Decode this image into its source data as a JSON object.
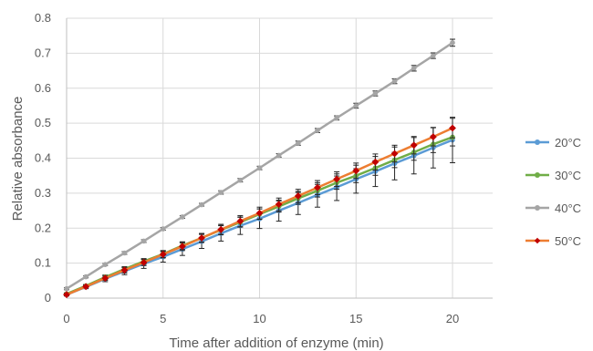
{
  "chart_data": {
    "type": "line",
    "xlabel": "Time after addition of enzyme (min)",
    "ylabel": "Relative absorbance",
    "xlim": [
      0,
      20
    ],
    "ylim": [
      0,
      0.8
    ],
    "x_ticks": [
      "0",
      "5",
      "10",
      "15",
      "20"
    ],
    "y_ticks": [
      "0",
      "0.1",
      "0.2",
      "0.3",
      "0.4",
      "0.5",
      "0.6",
      "0.7",
      "0.8"
    ],
    "grid": "vertical and horizontal",
    "legend_position": "right",
    "x": [
      0,
      1,
      2,
      3,
      4,
      5,
      6,
      7,
      8,
      9,
      10,
      11,
      12,
      13,
      14,
      15,
      16,
      17,
      18,
      19,
      20
    ],
    "series": [
      {
        "name": "20°C",
        "color": "#5b9bd5",
        "marker": "circle",
        "values": [
          0.01,
          0.032,
          0.055,
          0.077,
          0.098,
          0.118,
          0.14,
          0.162,
          0.185,
          0.207,
          0.227,
          0.25,
          0.272,
          0.295,
          0.317,
          0.34,
          0.362,
          0.385,
          0.407,
          0.43,
          0.452
        ],
        "errors": [
          0.004,
          0.005,
          0.008,
          0.01,
          0.013,
          0.015,
          0.018,
          0.02,
          0.022,
          0.025,
          0.028,
          0.03,
          0.033,
          0.035,
          0.038,
          0.04,
          0.043,
          0.047,
          0.052,
          0.058,
          0.065
        ]
      },
      {
        "name": "30°C",
        "color": "#70ad47",
        "marker": "circle",
        "values": [
          0.012,
          0.035,
          0.06,
          0.083,
          0.105,
          0.126,
          0.15,
          0.172,
          0.195,
          0.217,
          0.24,
          0.262,
          0.285,
          0.307,
          0.33,
          0.35,
          0.372,
          0.395,
          0.417,
          0.44,
          0.46
        ],
        "errors": [
          0.003,
          0.004,
          0.006,
          0.007,
          0.008,
          0.01,
          0.011,
          0.012,
          0.013,
          0.014,
          0.015,
          0.016,
          0.017,
          0.018,
          0.019,
          0.02,
          0.021,
          0.022,
          0.023,
          0.024,
          0.025
        ]
      },
      {
        "name": "40°C",
        "color": "#a5a5a5",
        "marker": "circle",
        "values": [
          0.027,
          0.061,
          0.096,
          0.129,
          0.163,
          0.198,
          0.232,
          0.267,
          0.302,
          0.337,
          0.372,
          0.408,
          0.443,
          0.479,
          0.515,
          0.55,
          0.585,
          0.62,
          0.657,
          0.693,
          0.73
        ],
        "errors": [
          0.003,
          0.003,
          0.003,
          0.004,
          0.004,
          0.004,
          0.004,
          0.004,
          0.005,
          0.005,
          0.005,
          0.005,
          0.006,
          0.006,
          0.006,
          0.007,
          0.007,
          0.007,
          0.008,
          0.008,
          0.01
        ]
      },
      {
        "name": "50°C",
        "color": "#c00000",
        "line_color": "#ed7d31",
        "marker": "diamond",
        "values": [
          0.01,
          0.033,
          0.057,
          0.08,
          0.102,
          0.125,
          0.148,
          0.172,
          0.196,
          0.22,
          0.243,
          0.268,
          0.292,
          0.316,
          0.34,
          0.364,
          0.389,
          0.413,
          0.437,
          0.461,
          0.486
        ],
        "errors": [
          0.003,
          0.004,
          0.006,
          0.008,
          0.009,
          0.01,
          0.012,
          0.013,
          0.015,
          0.016,
          0.017,
          0.018,
          0.019,
          0.02,
          0.021,
          0.022,
          0.023,
          0.024,
          0.025,
          0.026,
          0.028
        ]
      }
    ]
  }
}
